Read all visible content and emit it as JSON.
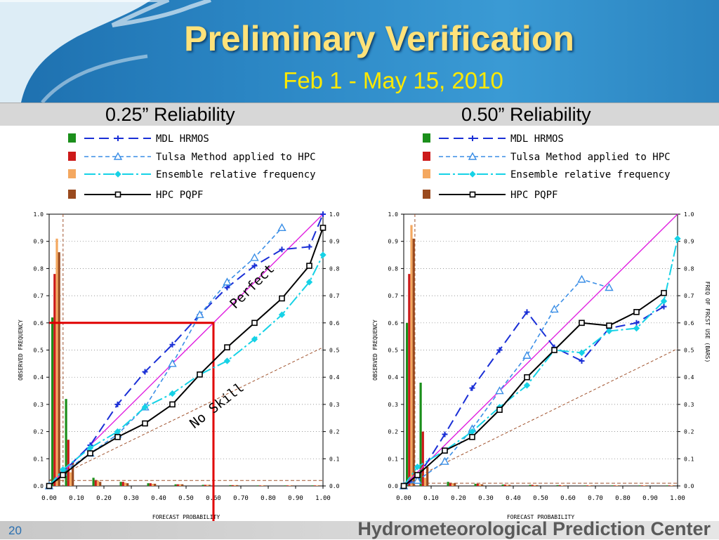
{
  "title": "Preliminary Verification",
  "subtitle": "Feb 1 - May 15, 2010",
  "footer": {
    "slide_number": "20",
    "organization": "Hydrometeorological Prediction Center"
  },
  "colors": {
    "mdl": "#1a2fd6",
    "tulsa": "#3a8ee6",
    "ensemble": "#16d2e6",
    "hpc": "#000000",
    "perfect": "#e020e0",
    "noskill": "#a0522d",
    "highlight": "#e00000"
  },
  "legend_entries": [
    "MDL HRMOS",
    "Tulsa Method applied to HPC",
    "Ensemble relative frequency",
    "HPC PQPF"
  ],
  "chart_data": [
    {
      "type": "line",
      "title": "0.25” Reliability",
      "xlabel": "FORECAST PROBABILITY",
      "ylabel": "OBSERVED FREQUENCY",
      "xlim": [
        0,
        1
      ],
      "ylim": [
        0,
        1
      ],
      "x_tick_labels": [
        "0.00",
        "0.10",
        "0.20",
        "0.30",
        "0.40",
        "0.50",
        "0.60",
        "0.70",
        "0.80",
        "0.90",
        "1.00"
      ],
      "y_tick_labels": [
        "0.0",
        "0.1",
        "0.2",
        "0.3",
        "0.4",
        "0.5",
        "0.6",
        "0.7",
        "0.8",
        "0.9",
        "1.0"
      ],
      "right_tick_labels": [
        "0.0",
        "0.1",
        "0.2",
        "0.3",
        "0.4",
        "0.5",
        "0.6",
        "0.7",
        "0.8",
        "0.9",
        "1.0"
      ],
      "right_label": "",
      "grid": true,
      "legend": "top",
      "series": [
        {
          "name": "MDL HRMOS",
          "x": [
            0.0,
            0.05,
            0.15,
            0.25,
            0.35,
            0.45,
            0.55,
            0.65,
            0.75,
            0.85,
            0.95,
            1.0
          ],
          "y": [
            0.0,
            0.05,
            0.15,
            0.3,
            0.42,
            0.52,
            0.63,
            0.73,
            0.81,
            0.87,
            0.88,
            1.0
          ]
        },
        {
          "name": "Tulsa Method applied to HPC",
          "x": [
            0.0,
            0.05,
            0.15,
            0.25,
            0.35,
            0.45,
            0.55,
            0.65,
            0.75,
            0.85
          ],
          "y": [
            0.0,
            0.05,
            0.12,
            0.19,
            0.29,
            0.45,
            0.63,
            0.75,
            0.84,
            0.95
          ]
        },
        {
          "name": "Ensemble relative frequency",
          "x": [
            0.0,
            0.05,
            0.15,
            0.25,
            0.35,
            0.45,
            0.55,
            0.65,
            0.75,
            0.85,
            0.95,
            1.0
          ],
          "y": [
            0.0,
            0.06,
            0.14,
            0.2,
            0.29,
            0.34,
            0.41,
            0.46,
            0.54,
            0.63,
            0.75,
            0.85
          ]
        },
        {
          "name": "HPC PQPF",
          "x": [
            0.0,
            0.05,
            0.15,
            0.25,
            0.35,
            0.45,
            0.55,
            0.65,
            0.75,
            0.85,
            0.95,
            1.0
          ],
          "y": [
            0.0,
            0.04,
            0.12,
            0.18,
            0.23,
            0.3,
            0.41,
            0.51,
            0.6,
            0.69,
            0.81,
            0.95
          ]
        }
      ],
      "bars": {
        "x": [
          0.0,
          0.05,
          0.15,
          0.25,
          0.35,
          0.45,
          0.55,
          0.65,
          0.75,
          0.85,
          0.95
        ],
        "groups": [
          {
            "name": "MDL HRMOS",
            "values": [
              0.62,
              0.32,
              0.03,
              0.015,
              0.01,
              0.006,
              0.004,
              0.003,
              0.002,
              0.002,
              0.002
            ]
          },
          {
            "name": "Tulsa Method applied to HPC",
            "values": [
              0.78,
              0.17,
              0.022,
              0.015,
              0.01,
              0.006,
              0.004,
              0.003,
              0.002,
              0.002,
              0.002
            ]
          },
          {
            "name": "Ensemble relative frequency",
            "values": [
              0.91,
              0.05,
              0.02,
              0.012,
              0.008,
              0.006,
              0.004,
              0.003,
              0.002,
              0.002,
              0.002
            ]
          },
          {
            "name": "HPC PQPF",
            "values": [
              0.86,
              0.09,
              0.015,
              0.01,
              0.008,
              0.006,
              0.004,
              0.003,
              0.002,
              0.002,
              0.002
            ]
          }
        ]
      },
      "perfect_label": "Perfect",
      "noskill_label": "No Skill",
      "climatology": 0.02,
      "highlight_point": {
        "x": 0.6,
        "y": 0.6
      }
    },
    {
      "type": "line",
      "title": "0.50” Reliability",
      "xlabel": "FORECAST PROBABILITY",
      "ylabel": "OBSERVED FREQUENCY",
      "xlim": [
        0,
        1
      ],
      "ylim": [
        0,
        1
      ],
      "x_tick_labels": [
        "0.00",
        "0.10",
        "0.20",
        "0.30",
        "0.40",
        "0.50",
        "0.60",
        "0.70",
        "0.80",
        "0.90",
        "1.00"
      ],
      "y_tick_labels": [
        "0.0",
        "0.1",
        "0.2",
        "0.3",
        "0.4",
        "0.5",
        "0.6",
        "0.7",
        "0.8",
        "0.9",
        "1.0"
      ],
      "right_tick_labels": [
        "0.0",
        "0.1",
        "0.2",
        "0.3",
        "0.4",
        "0.5",
        "0.6",
        "0.7",
        "0.8",
        "0.9",
        "1.0"
      ],
      "right_label": "FREQ OF FRCST USE (BARS)",
      "grid": true,
      "legend": "top",
      "series": [
        {
          "name": "MDL HRMOS",
          "x": [
            0.0,
            0.05,
            0.15,
            0.25,
            0.35,
            0.45,
            0.55,
            0.65,
            0.75,
            0.85,
            0.95
          ],
          "y": [
            0.0,
            0.03,
            0.19,
            0.36,
            0.5,
            0.64,
            0.51,
            0.46,
            0.58,
            0.6,
            0.66
          ]
        },
        {
          "name": "Tulsa Method applied to HPC",
          "x": [
            0.0,
            0.05,
            0.15,
            0.25,
            0.35,
            0.45,
            0.55,
            0.65,
            0.75
          ],
          "y": [
            0.0,
            0.02,
            0.09,
            0.21,
            0.35,
            0.48,
            0.65,
            0.76,
            0.73
          ]
        },
        {
          "name": "Ensemble relative frequency",
          "x": [
            0.0,
            0.05,
            0.15,
            0.25,
            0.35,
            0.45,
            0.55,
            0.65,
            0.75,
            0.85,
            0.95,
            1.0
          ],
          "y": [
            0.0,
            0.07,
            0.13,
            0.2,
            0.29,
            0.37,
            0.5,
            0.49,
            0.57,
            0.58,
            0.68,
            0.91
          ]
        },
        {
          "name": "HPC PQPF",
          "x": [
            0.0,
            0.05,
            0.15,
            0.25,
            0.35,
            0.45,
            0.55,
            0.65,
            0.75,
            0.85,
            0.95
          ],
          "y": [
            0.0,
            0.04,
            0.13,
            0.18,
            0.28,
            0.4,
            0.5,
            0.6,
            0.59,
            0.64,
            0.71
          ]
        }
      ],
      "bars": {
        "x": [
          0.0,
          0.05,
          0.15,
          0.25,
          0.35,
          0.45,
          0.55,
          0.65,
          0.75,
          0.85,
          0.95
        ],
        "groups": [
          {
            "name": "MDL HRMOS",
            "values": [
              0.6,
              0.38,
              0.015,
              0.008,
              0.005,
              0.004,
              0.003,
              0.002,
              0.002,
              0.002,
              0.002
            ]
          },
          {
            "name": "Tulsa Method applied to HPC",
            "values": [
              0.78,
              0.2,
              0.012,
              0.008,
              0.005,
              0.004,
              0.003,
              0.002,
              0.002,
              0.002,
              0.002
            ]
          },
          {
            "name": "Ensemble relative frequency",
            "values": [
              0.96,
              0.03,
              0.01,
              0.006,
              0.004,
              0.003,
              0.002,
              0.002,
              0.002,
              0.002,
              0.002
            ]
          },
          {
            "name": "HPC PQPF",
            "values": [
              0.91,
              0.07,
              0.01,
              0.006,
              0.004,
              0.003,
              0.002,
              0.002,
              0.002,
              0.002,
              0.002
            ]
          }
        ]
      },
      "climatology": 0.01
    }
  ]
}
